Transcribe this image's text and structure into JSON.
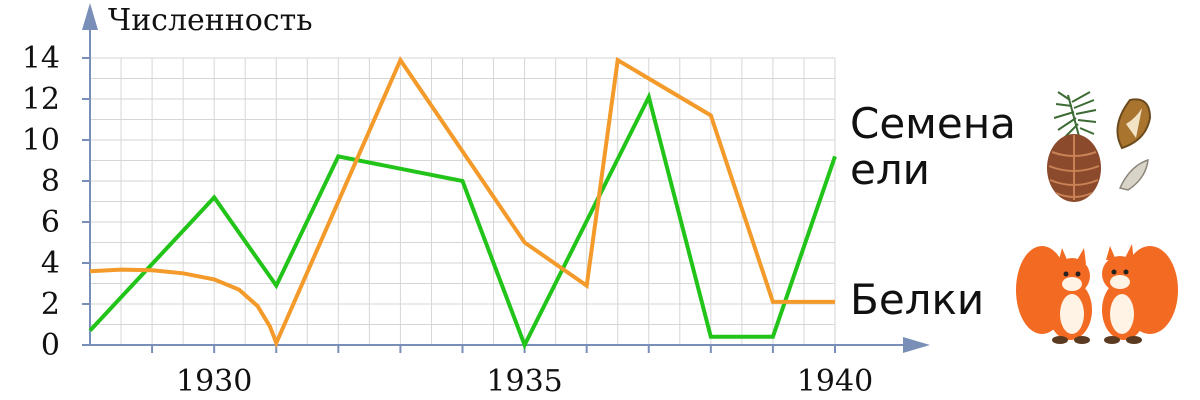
{
  "chart_data": {
    "type": "line",
    "ylabel": "Численность",
    "xlabel": "",
    "xlim": [
      1928,
      1940
    ],
    "ylim": [
      0,
      14
    ],
    "x_ticks": [
      1930,
      1935,
      1940
    ],
    "y_ticks": [
      0,
      2,
      4,
      6,
      8,
      10,
      12,
      14
    ],
    "grid": true,
    "series": [
      {
        "name": "Семена ели",
        "color": "#22c41a",
        "points": [
          [
            1928,
            0.7
          ],
          [
            1930,
            7.2
          ],
          [
            1931,
            2.9
          ],
          [
            1932,
            9.2
          ],
          [
            1934,
            8.0
          ],
          [
            1935,
            0.0
          ],
          [
            1937,
            12.1
          ],
          [
            1938,
            0.4
          ],
          [
            1939,
            0.4
          ],
          [
            1940,
            9.2
          ]
        ]
      },
      {
        "name": "Белки",
        "color": "#f39a2a",
        "points": [
          [
            1928,
            3.6
          ],
          [
            1928.5,
            3.68
          ],
          [
            1929,
            3.65
          ],
          [
            1929.5,
            3.5
          ],
          [
            1930,
            3.2
          ],
          [
            1930.4,
            2.7
          ],
          [
            1930.7,
            1.9
          ],
          [
            1930.9,
            0.9
          ],
          [
            1931,
            0.1
          ],
          [
            1933,
            13.9
          ],
          [
            1935,
            5.0
          ],
          [
            1936,
            2.9
          ],
          [
            1936.5,
            13.9
          ],
          [
            1938,
            11.2
          ],
          [
            1939,
            2.1
          ],
          [
            1940,
            2.1
          ]
        ]
      }
    ],
    "legend": [
      {
        "lines": [
          "Семена",
          "ели"
        ],
        "icon": "spruce-cone-and-seeds-icon"
      },
      {
        "lines": [
          "Белки"
        ],
        "icon": "squirrels-icon"
      }
    ]
  }
}
